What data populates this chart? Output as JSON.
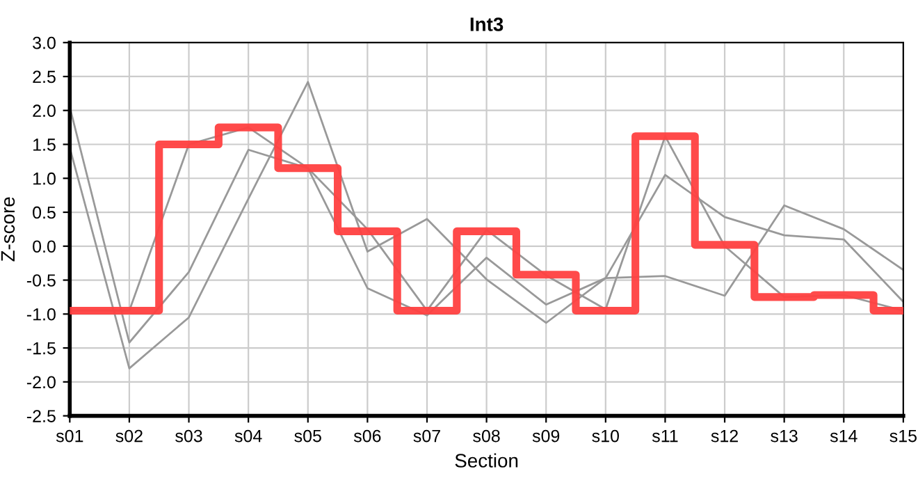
{
  "chart_data": {
    "type": "line",
    "title": "Int3",
    "xlabel": "Section",
    "ylabel": "Z-score",
    "categories": [
      "s01",
      "s02",
      "s03",
      "s04",
      "s05",
      "s06",
      "s07",
      "s08",
      "s09",
      "s10",
      "s11",
      "s12",
      "s13",
      "s14",
      "s15"
    ],
    "series": [
      {
        "color": "#999999",
        "values": [
          2.05,
          -1.42,
          -0.38,
          1.42,
          1.15,
          -0.62,
          -1.02,
          -0.17,
          -0.86,
          -0.47,
          1.05,
          0.43,
          0.16,
          0.1,
          -0.82
        ]
      },
      {
        "color": "#999999",
        "values": [
          1.45,
          -1.8,
          -1.05,
          0.7,
          2.42,
          -0.08,
          0.4,
          -0.49,
          -1.13,
          -0.47,
          -0.44,
          -0.73,
          0.6,
          0.25,
          -0.35
        ]
      },
      {
        "color": "#999999",
        "values": [
          -0.95,
          -0.95,
          1.5,
          1.75,
          1.15,
          0.25,
          -0.95,
          0.24,
          -0.43,
          -0.93,
          1.62,
          0.0,
          -0.75,
          -0.72,
          -0.95
        ]
      },
      {
        "type": "step",
        "color": "#ff4040",
        "values": [
          -0.95,
          -0.95,
          1.5,
          1.75,
          1.15,
          0.22,
          -0.95,
          0.22,
          -0.42,
          -0.95,
          1.62,
          0.02,
          -0.75,
          -0.72,
          -0.95
        ]
      }
    ],
    "ylim": [
      -2.5,
      3.0
    ],
    "yticks": [
      -2.5,
      {
        "value": -2,
        "label": "-2.0"
      },
      -1.5,
      {
        "value": -1,
        "label": "-1.0"
      },
      -0.5,
      {
        "value": 0,
        "label": "0.0"
      },
      0.5,
      {
        "value": 1,
        "label": "1.0"
      },
      1.5,
      {
        "value": 2,
        "label": "2.0"
      },
      2.5,
      {
        "value": 3,
        "label": "3.0"
      }
    ],
    "grid": true,
    "legend": false
  }
}
